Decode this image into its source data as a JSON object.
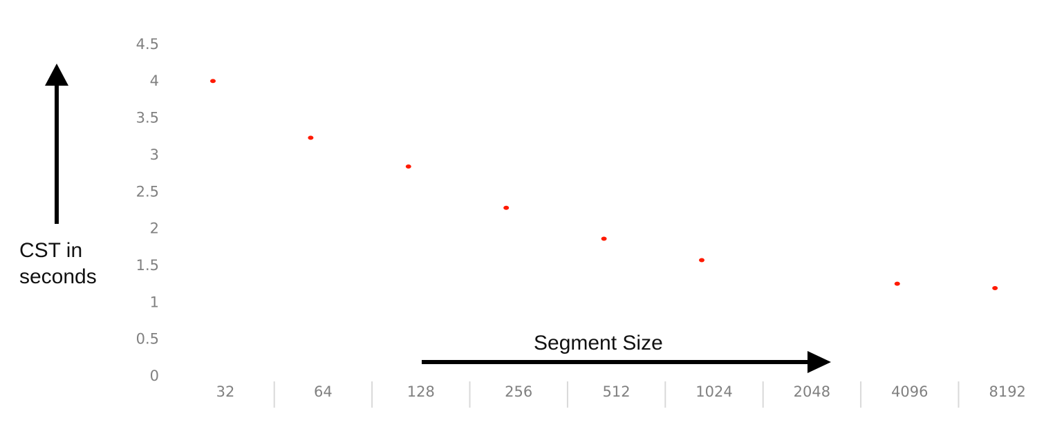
{
  "chart_data": {
    "type": "scatter",
    "title": "",
    "xlabel": "Segment Size",
    "ylabel": "CST in seconds",
    "ylabel_lines": [
      "CST in",
      "seconds"
    ],
    "categories": [
      "32",
      "64",
      "128",
      "256",
      "512",
      "1024",
      "2048",
      "4096",
      "8192"
    ],
    "yticks": [
      "0",
      "0.5",
      "1",
      "1.5",
      "2",
      "2.5",
      "3",
      "3.5",
      "4",
      "4.5"
    ],
    "ylim": [
      0,
      4.5
    ],
    "grid": false,
    "legend": "none",
    "marker_color": "#ff1a00",
    "points": [
      {
        "x": "32",
        "y": 4.0
      },
      {
        "x": "64",
        "y": 3.23
      },
      {
        "x": "128",
        "y": 2.84
      },
      {
        "x": "256",
        "y": 2.28
      },
      {
        "x": "512",
        "y": 1.86
      },
      {
        "x": "1024",
        "y": 1.57
      },
      {
        "x": "4096",
        "y": 1.25
      },
      {
        "x": "8192",
        "y": 1.19
      }
    ]
  }
}
